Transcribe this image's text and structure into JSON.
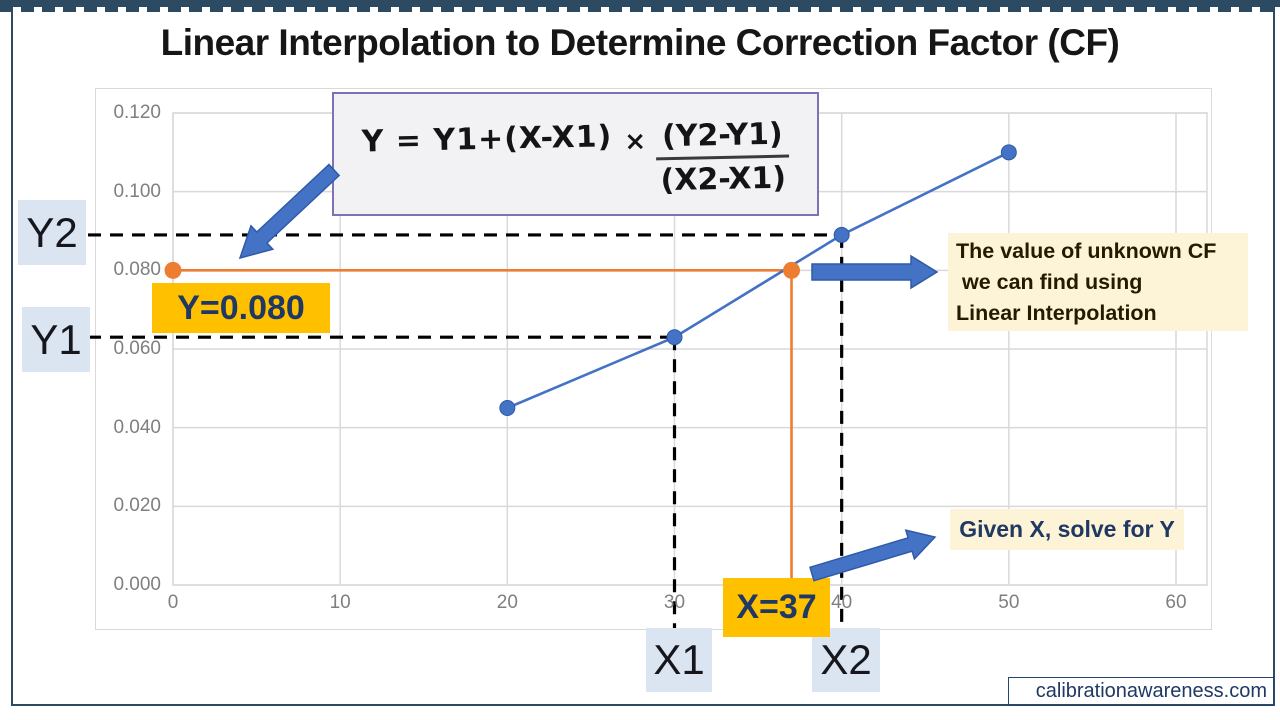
{
  "title": "Linear Interpolation to Determine Correction Factor (CF)",
  "watermark": "calibrationawareness.com",
  "labels": {
    "y2": "Y2",
    "y1": "Y1",
    "x1": "X1",
    "x2": "X2",
    "y_value": "Y=0.080",
    "x_value": "X=37"
  },
  "formula": {
    "left": "Y = Y1+(X-X1)",
    "times": "×",
    "numerator": "(Y2-Y1)",
    "denominator": "(X2-X1)"
  },
  "notes": {
    "cf_lines": [
      "The value of unknown CF",
      " we can find using",
      "Linear Interpolation"
    ],
    "given": "Given X, solve for Y"
  },
  "colors": {
    "series_blue": "#4472c4",
    "interp_orange": "#ed7d31",
    "gridline": "#d9d9d9",
    "frame_navy": "#2d4a63",
    "chip_blue_bg": "#dbe5f1",
    "chip_gold_bg": "#ffc000",
    "note_cream_bg": "#fdf3d6",
    "navy_text": "#1f3864"
  },
  "chart_data": {
    "type": "line",
    "title": "Linear Interpolation to Determine Correction Factor (CF)",
    "xlabel": "",
    "ylabel": "",
    "x": [
      20,
      30,
      40,
      50
    ],
    "y": [
      0.045,
      0.063,
      0.089,
      0.11
    ],
    "xlim": [
      0,
      60
    ],
    "ylim": [
      0,
      0.12
    ],
    "x_ticks": [
      0,
      10,
      20,
      30,
      40,
      50,
      60
    ],
    "y_ticks": [
      "0.000",
      "0.020",
      "0.040",
      "0.060",
      "0.080",
      "0.100",
      "0.120"
    ],
    "grid": true,
    "legend": false,
    "interpolation": {
      "x": 37,
      "y": 0.08,
      "x1": 30,
      "y1": 0.063,
      "x2": 40,
      "y2": 0.089
    }
  }
}
